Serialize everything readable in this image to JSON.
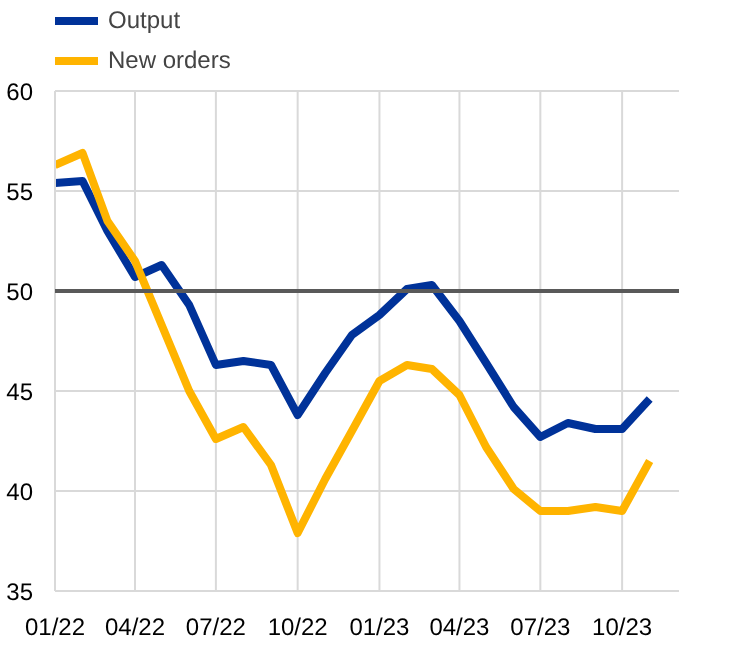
{
  "chart_data": {
    "type": "line",
    "x": [
      "2022-01",
      "2022-02",
      "2022-03",
      "2022-04",
      "2022-05",
      "2022-06",
      "2022-07",
      "2022-08",
      "2022-09",
      "2022-10",
      "2022-11",
      "2022-12",
      "2023-01",
      "2023-02",
      "2023-03",
      "2023-04",
      "2023-05",
      "2023-06",
      "2023-07",
      "2023-08",
      "2023-09",
      "2023-10",
      "2023-11"
    ],
    "series": [
      {
        "name": "Output",
        "color": "#003299",
        "values": [
          55.4,
          55.5,
          53.0,
          50.7,
          51.3,
          49.3,
          46.3,
          46.5,
          46.3,
          43.8,
          45.9,
          47.8,
          48.8,
          50.1,
          50.3,
          48.5,
          46.4,
          44.2,
          42.7,
          43.4,
          43.1,
          43.1,
          44.6
        ]
      },
      {
        "name": "New orders",
        "color": "#ffb400",
        "values": [
          56.3,
          56.9,
          53.5,
          51.5,
          48.3,
          45.0,
          42.6,
          43.2,
          41.3,
          37.9,
          40.6,
          43.0,
          45.5,
          46.3,
          46.1,
          44.8,
          42.2,
          40.1,
          39.0,
          39.0,
          39.2,
          39.0,
          41.5
        ]
      }
    ],
    "xlim": [
      "2022-01-01",
      "2023-12-04"
    ],
    "xticks": [
      {
        "value": "2022-01",
        "label": "01/22"
      },
      {
        "value": "2022-04",
        "label": "04/22"
      },
      {
        "value": "2022-07",
        "label": "07/22"
      },
      {
        "value": "2022-10",
        "label": "10/22"
      },
      {
        "value": "2023-01",
        "label": "01/23"
      },
      {
        "value": "2023-04",
        "label": "04/23"
      },
      {
        "value": "2023-07",
        "label": "07/23"
      },
      {
        "value": "2023-10",
        "label": "10/23"
      }
    ],
    "ylim": [
      35,
      60
    ],
    "yticks": [
      35,
      40,
      45,
      50,
      55,
      60
    ],
    "ref_lines": [
      {
        "axis": "y",
        "value": 50,
        "color": "#595959"
      }
    ],
    "grid": true,
    "legend": "top left",
    "line_style": "solid",
    "marker": "none"
  }
}
